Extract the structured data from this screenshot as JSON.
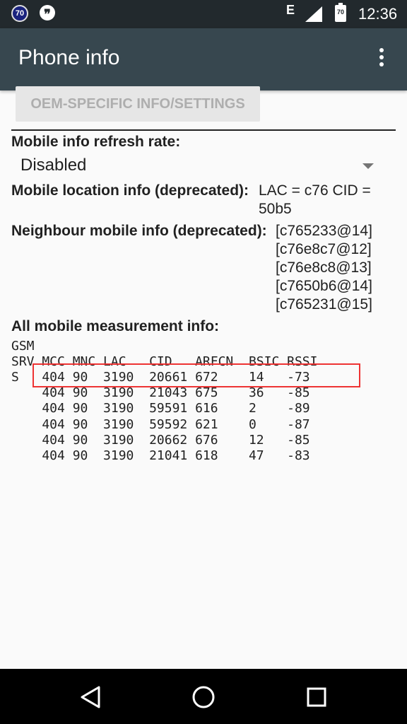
{
  "status_bar": {
    "badge_text": "70",
    "network": "E",
    "battery_text": "70",
    "time": "12:36"
  },
  "app_bar": {
    "title": "Phone info"
  },
  "oem_button": {
    "label": "OEM-SPECIFIC INFO/SETTINGS"
  },
  "refresh": {
    "label": "Mobile info refresh rate:",
    "value": "Disabled"
  },
  "location": {
    "label": "Mobile location info (deprecated):",
    "value_line1": "LAC = c76   CID =",
    "value_line2": "50b5"
  },
  "neighbour": {
    "label": "Neighbour mobile info (deprecated):",
    "values": [
      "[c765233@14]",
      "[c76e8c7@12]",
      "[c76e8c8@13]",
      "[c7650b6@14]",
      "[c765231@15]"
    ]
  },
  "measurement": {
    "label": "All mobile measurement info:",
    "lines": [
      "GSM",
      "SRV MCC MNC LAC   CID   ARFCN  BSIC RSSI",
      "S   404 90  3190  20661 672    14   -73",
      "    404 90  3190  21043 675    36   -85",
      "    404 90  3190  59591 616    2    -89",
      "    404 90  3190  59592 621    0    -87",
      "    404 90  3190  20662 676    12   -85",
      "    404 90  3190  21041 618    47   -83"
    ]
  },
  "colors": {
    "app_bar": "#37474f",
    "status_bar": "#22292d",
    "highlight": "#e33333"
  },
  "icons": [
    "notification-badge-icon",
    "hangouts-icon",
    "signal-icon",
    "battery-icon",
    "more-vert-icon",
    "back-icon",
    "home-icon",
    "recents-icon"
  ]
}
